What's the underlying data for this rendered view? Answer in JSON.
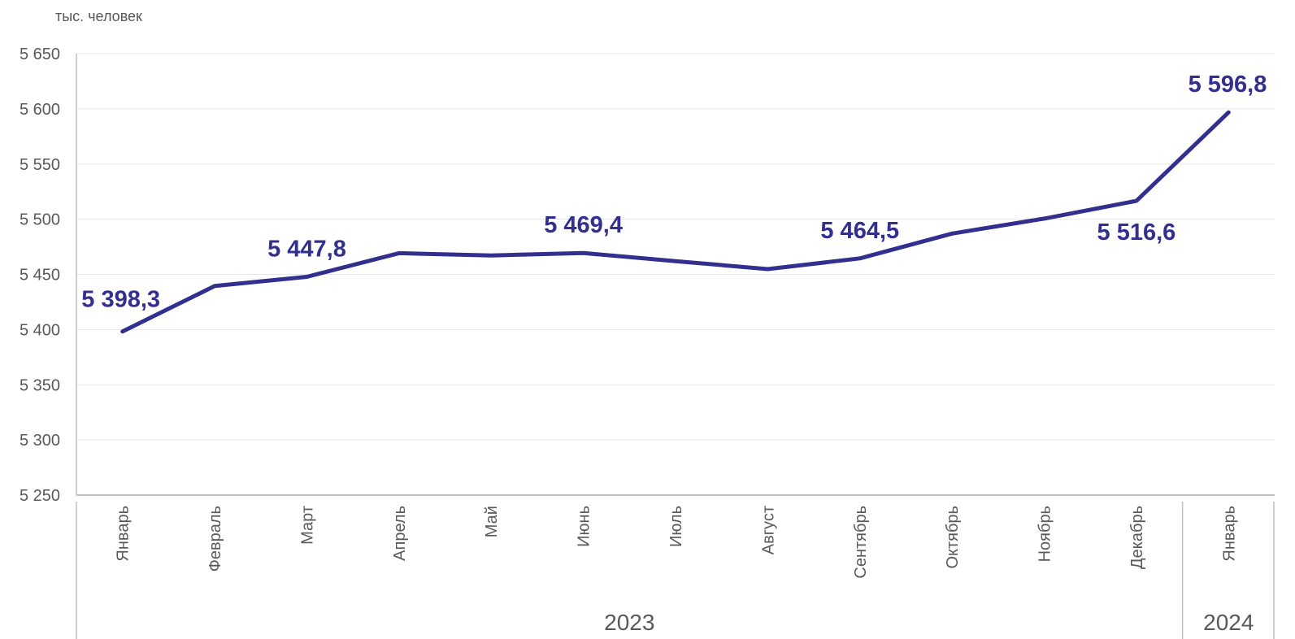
{
  "unit_label": "тыс. человек",
  "chart_data": {
    "type": "line",
    "title": "",
    "ylabel": "тыс. человек",
    "ylim": [
      5250,
      5650
    ],
    "yticks": [
      5250,
      5300,
      5350,
      5400,
      5450,
      5500,
      5550,
      5600,
      5650
    ],
    "ytick_labels": [
      "5 250",
      "5 300",
      "5 350",
      "5 400",
      "5 450",
      "5 500",
      "5 550",
      "5 600",
      "5 650"
    ],
    "grid": true,
    "categories": [
      "Январь",
      "Февраль",
      "Март",
      "Апрель",
      "Май",
      "Июнь",
      "Июль",
      "Август",
      "Сентябрь",
      "Октябрь",
      "Ноябрь",
      "Декабрь",
      "Январь"
    ],
    "groups": [
      {
        "label": "2023",
        "count": 12
      },
      {
        "label": "2024",
        "count": 1
      }
    ],
    "series": [
      {
        "values": [
          5398.3,
          5439.5,
          5447.8,
          5469.2,
          5467.2,
          5469.4,
          5462.0,
          5454.8,
          5464.5,
          5487.0,
          5500.5,
          5516.6,
          5596.8
        ],
        "color": "#332f8f"
      }
    ],
    "data_labels": [
      {
        "index": 0,
        "text": "5 398,3",
        "position": "above-left"
      },
      {
        "index": 2,
        "text": "5 447,8",
        "position": "above"
      },
      {
        "index": 5,
        "text": "5 469,4",
        "position": "above"
      },
      {
        "index": 8,
        "text": "5 464,5",
        "position": "above"
      },
      {
        "index": 11,
        "text": "5 516,6",
        "position": "below"
      },
      {
        "index": 12,
        "text": "5 596,8",
        "position": "above"
      }
    ]
  }
}
